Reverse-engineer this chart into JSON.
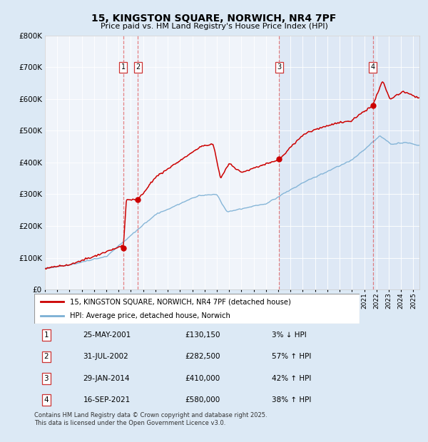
{
  "title": "15, KINGSTON SQUARE, NORWICH, NR4 7PF",
  "subtitle": "Price paid vs. HM Land Registry's House Price Index (HPI)",
  "legend_house": "15, KINGSTON SQUARE, NORWICH, NR4 7PF (detached house)",
  "legend_hpi": "HPI: Average price, detached house, Norwich",
  "transactions": [
    {
      "label": "1",
      "date": "25-MAY-2001",
      "price": 130150,
      "pct": "3% ↓ HPI",
      "x_year": 2001.38
    },
    {
      "label": "2",
      "date": "31-JUL-2002",
      "price": 282500,
      "pct": "57% ↑ HPI",
      "x_year": 2002.58
    },
    {
      "label": "3",
      "date": "29-JAN-2014",
      "price": 410000,
      "pct": "42% ↑ HPI",
      "x_year": 2014.08
    },
    {
      "label": "4",
      "date": "16-SEP-2021",
      "price": 580000,
      "pct": "38% ↑ HPI",
      "x_year": 2021.71
    }
  ],
  "house_color": "#cc0000",
  "hpi_color": "#7aafd4",
  "background_color": "#dce9f5",
  "plot_bg_left": "#ffffff",
  "plot_bg_right": "#dce9f5",
  "footer": "Contains HM Land Registry data © Crown copyright and database right 2025.\nThis data is licensed under the Open Government Licence v3.0.",
  "ylim": [
    0,
    800000
  ],
  "xlim_start": 1995.0,
  "xlim_end": 2025.5,
  "vline_split": 2014.0
}
